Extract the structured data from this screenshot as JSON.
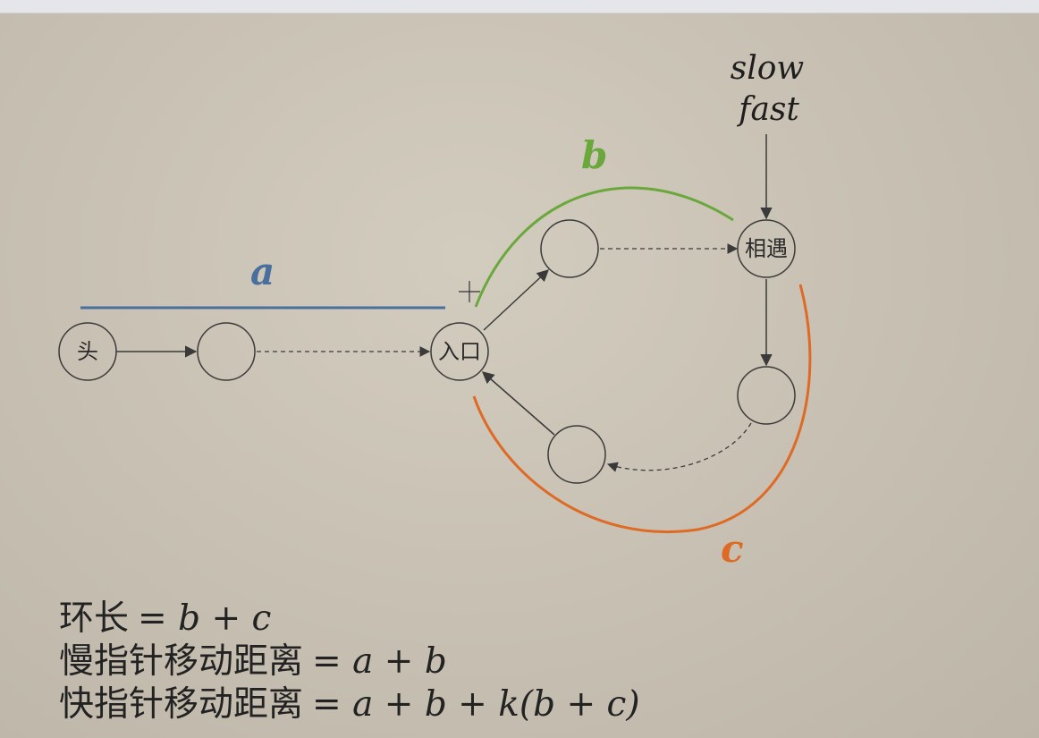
{
  "nodes": {
    "head": "头",
    "entry": "入口",
    "meet": "相遇"
  },
  "labels": {
    "a": "a",
    "b": "b",
    "c": "c",
    "slow": "slow",
    "fast": "fast"
  },
  "formulas": [
    {
      "text": "环长",
      "expr": "= b + c"
    },
    {
      "text": "慢指针移动距离",
      "expr": "= a + b"
    },
    {
      "text": "快指针移动距离",
      "expr": "= a + b + k(b + c)"
    }
  ],
  "colors": {
    "a": "#4a6f9c",
    "b": "#6aa83c",
    "c": "#de6a26",
    "stroke": "#3a3a3a"
  }
}
